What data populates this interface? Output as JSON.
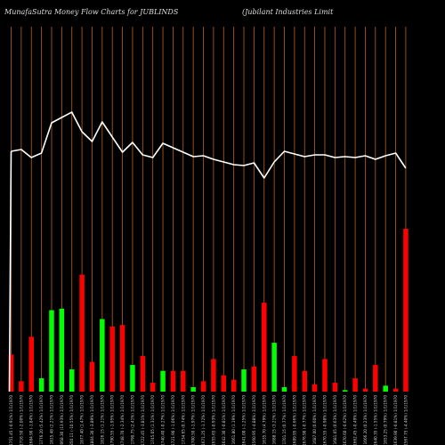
{
  "header": {
    "left": "MunafaSutra  Money Flow  Charts for JUBLINDS",
    "right": "(Jubilant Industries Limit"
  },
  "colors": {
    "background": "#000000",
    "grid": "#b8621b",
    "up": "#00ff00",
    "down": "#ff0000",
    "line": "#ffffff"
  },
  "chart_data": {
    "type": "bar",
    "title": "MunafaSutra  Money Flow  Charts for JUBLINDS",
    "categories": [
      "1751.45 (-0.91%) 1/1/1970",
      "1716.50 (-2.00%) 1/1/1970",
      "1684.90 (-1.84%) 1/1/1970",
      "1776.20 (5.42%) 1/1/1970",
      "1815.48 (2.21%) 1/1/1970",
      "2068.30 (13.93%) 1/1/1970",
      "1850.11 (-10.55%) 1/1/1970",
      "1877.40 (1.47%) 1/1/1970",
      "1804.30 (-3.89%) 1/1/1970",
      "1826.15 (1.21%) 1/1/1970",
      "1790.55 (-1.95%) 1/1/1970",
      "1748.70 (-2.34%) 1/1/1970",
      "1790.75 (2.41%) 1/1/1970",
      "1722.45 (-3.81%) 1/1/1970",
      "1745.05 (1.31%) 1/1/1970",
      "1740.40 (-0.27%) 1/1/1970",
      "1721.90 (-1.06%) 1/1/1970",
      "1734.65 (0.74%) 1/1/1970",
      "1700.50 (-1.97%) 1/1/1970",
      "1671.25 (-1.72%) 1/1/1970",
      "1655.65 (-0.93%) 1/1/1970",
      "1642.30 (-0.81%) 1/1/1970",
      "1661.80 (1.19%) 1/1/1970",
      "1641.00 (-1.25%) 1/1/1970",
      "1560.95 (-4.88%) 1/1/1970",
      "1635.70 (4.79%) 1/1/1970",
      "1688.15 (3.21%) 1/1/1970",
      "1701.15 (0.77%) 1/1/1970",
      "1689.95 (-0.66%) 1/1/1970",
      "1676.90 (-0.77%) 1/1/1970",
      "1687.00 (0.60%) 1/1/1970",
      "1670.55 (-0.98%) 1/1/1970",
      "1681.05 (0.63%) 1/1/1970",
      "1670.60 (-0.62%) 1/1/1970",
      "1662.45 (-0.49%) 1/1/1970",
      "1666.20 (0.23%) 1/1/1970",
      "1640.35 (-1.55%) 1/1/1970",
      "1653.25 (0.79%) 1/1/1970",
      "1639.90 (-0.81%) 1/1/1970",
      "1567.75 (-4.40%) 1/1/1970"
    ],
    "series": [
      {
        "values": [
          25,
          7,
          37,
          9,
          55,
          56,
          15,
          79,
          20,
          49,
          44,
          45,
          18,
          24,
          6,
          14,
          14,
          14,
          3,
          7,
          22,
          11,
          8,
          15,
          17,
          60,
          33,
          3,
          24,
          14,
          5,
          22,
          6,
          1,
          9,
          2,
          18,
          4,
          2,
          110
        ],
        "direction": [
          "down",
          "down",
          "down",
          "up",
          "up",
          "up",
          "up",
          "down",
          "down",
          "up",
          "down",
          "down",
          "up",
          "down",
          "down",
          "up",
          "down",
          "down",
          "up",
          "down",
          "down",
          "down",
          "down",
          "up",
          "down",
          "down",
          "up",
          "up",
          "down",
          "down",
          "down",
          "down",
          "down",
          "up",
          "down",
          "down",
          "down",
          "up",
          "down",
          "down"
        ]
      },
      {
        "values": [
          1751.45,
          1716.5,
          1684.9,
          1776.2,
          1815.48,
          2068.3,
          1850.11,
          1877.4,
          1804.3,
          1826.15,
          1790.55,
          1748.7,
          1790.75,
          1722.45,
          1745.05,
          1740.4,
          1721.9,
          1734.65,
          1700.5,
          1671.25,
          1655.65,
          1642.3,
          1661.8,
          1641.0,
          1560.95,
          1635.7,
          1688.15,
          1701.15,
          1689.95,
          1676.9,
          1687.0,
          1670.55,
          1681.05,
          1670.6,
          1662.45,
          1666.2,
          1640.35,
          1653.25,
          1639.9,
          1567.75
        ]
      }
    ],
    "price_line": [
      170,
      168,
      177,
      172,
      138,
      132,
      126,
      148,
      159,
      137,
      154,
      171,
      160,
      174,
      177,
      161,
      166,
      171,
      176,
      175,
      179,
      182,
      185,
      186,
      183,
      200,
      182,
      170,
      173,
      176,
      174,
      174,
      177,
      176,
      177,
      175,
      179,
      175,
      172,
      189
    ],
    "line_range": [
      120,
      420
    ],
    "grid": true
  }
}
